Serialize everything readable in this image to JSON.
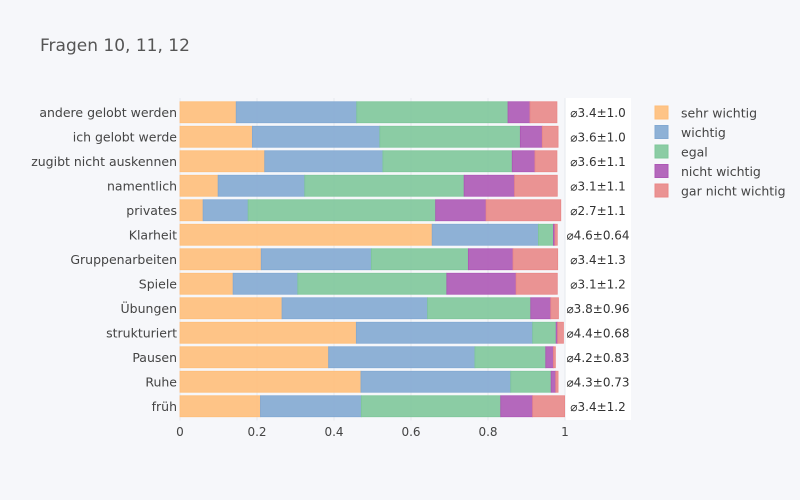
{
  "chart_data": {
    "type": "bar",
    "orientation": "horizontal",
    "stacked": true,
    "title": "Fragen 10, 11, 12",
    "categories": [
      "andere gelobt werden",
      "ich gelobt werde",
      "zugibt nicht auskennen",
      "namentlich",
      "privates",
      "Klarheit",
      "Gruppenarbeiten",
      "Spiele",
      "Übungen",
      "strukturiert",
      "Pausen",
      "Ruhe",
      "früh"
    ],
    "series": [
      {
        "name": "sehr wichtig",
        "color": "#ffbe7a",
        "values": [
          0.146,
          0.188,
          0.22,
          0.099,
          0.06,
          0.655,
          0.211,
          0.138,
          0.265,
          0.458,
          0.386,
          0.47,
          0.209
        ]
      },
      {
        "name": "wichtig",
        "color": "#83a9d2",
        "values": [
          0.313,
          0.331,
          0.307,
          0.225,
          0.117,
          0.276,
          0.286,
          0.168,
          0.378,
          0.458,
          0.38,
          0.389,
          0.262
        ]
      },
      {
        "name": "egal",
        "color": "#7fc79a",
        "values": [
          0.393,
          0.365,
          0.336,
          0.414,
          0.487,
          0.039,
          0.252,
          0.387,
          0.268,
          0.061,
          0.184,
          0.105,
          0.362
        ]
      },
      {
        "name": "nicht wichtig",
        "color": "#ad58b5",
        "values": [
          0.057,
          0.057,
          0.059,
          0.131,
          0.131,
          0.004,
          0.116,
          0.18,
          0.052,
          0.004,
          0.02,
          0.012,
          0.083
        ]
      },
      {
        "name": "gar nicht wichtig",
        "color": "#e98787",
        "values": [
          0.07,
          0.041,
          0.057,
          0.111,
          0.194,
          0.006,
          0.116,
          0.107,
          0.02,
          0.015,
          0.005,
          0.006,
          0.083
        ]
      }
    ],
    "stat_labels": [
      "⌀3.4±1.0",
      "⌀3.6±1.0",
      "⌀3.6±1.1",
      "⌀3.1±1.1",
      "⌀2.7±1.1",
      "⌀4.6±0.64",
      "⌀3.4±1.3",
      "⌀3.1±1.2",
      "⌀3.8±0.96",
      "⌀4.4±0.68",
      "⌀4.2±0.83",
      "⌀4.3±0.73",
      "⌀3.4±1.2"
    ],
    "xlim": [
      0,
      1
    ],
    "xticks": [
      "0",
      "0.2",
      "0.4",
      "0.6",
      "0.8",
      "1"
    ],
    "xlabel": "",
    "ylabel": "",
    "legend_position": "top-right",
    "grid": true
  }
}
